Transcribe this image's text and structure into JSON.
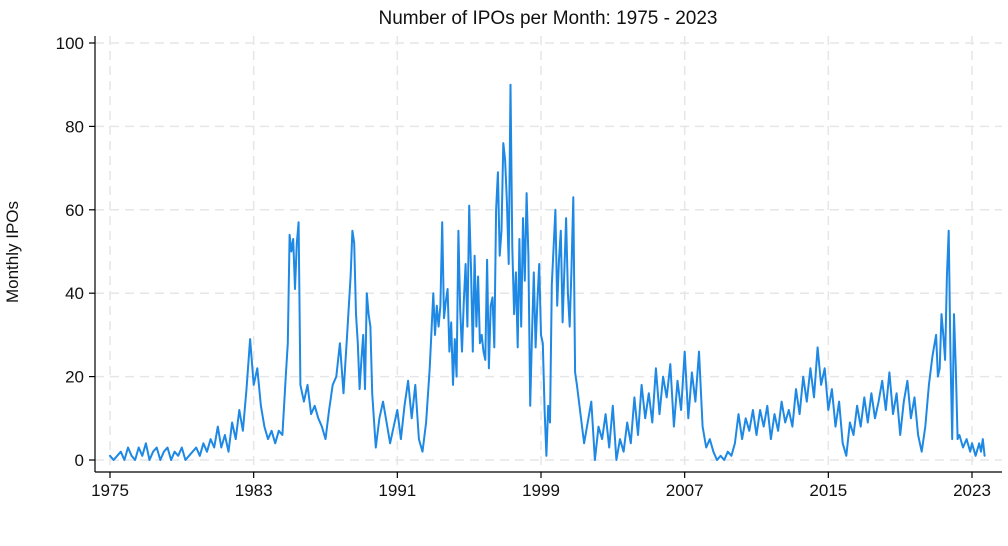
{
  "chart_data": {
    "type": "line",
    "title": "Number of IPOs per Month: 1975 - 2023",
    "xlabel": "",
    "ylabel": "Monthly IPOs",
    "xlim": [
      1975,
      2023.75
    ],
    "ylim": [
      0,
      100
    ],
    "x_ticks": [
      1975,
      1983,
      1991,
      1999,
      2007,
      2015,
      2023
    ],
    "y_ticks": [
      0,
      20,
      40,
      60,
      80,
      100
    ],
    "grid": true,
    "x_unit": "year (monthly observations)",
    "series": [
      {
        "color": "#1e88e5",
        "points": [
          [
            1975.0,
            1
          ],
          [
            1975.2,
            0
          ],
          [
            1975.4,
            1
          ],
          [
            1975.6,
            2
          ],
          [
            1975.8,
            0
          ],
          [
            1976.0,
            3
          ],
          [
            1976.2,
            1
          ],
          [
            1976.4,
            0
          ],
          [
            1976.6,
            3
          ],
          [
            1976.8,
            1
          ],
          [
            1977.0,
            4
          ],
          [
            1977.2,
            0
          ],
          [
            1977.4,
            2
          ],
          [
            1977.6,
            3
          ],
          [
            1977.8,
            0
          ],
          [
            1978.0,
            2
          ],
          [
            1978.2,
            3
          ],
          [
            1978.4,
            0
          ],
          [
            1978.6,
            2
          ],
          [
            1978.8,
            1
          ],
          [
            1979.0,
            3
          ],
          [
            1979.2,
            0
          ],
          [
            1979.4,
            1
          ],
          [
            1979.6,
            2
          ],
          [
            1979.8,
            3
          ],
          [
            1980.0,
            1
          ],
          [
            1980.2,
            4
          ],
          [
            1980.4,
            2
          ],
          [
            1980.6,
            5
          ],
          [
            1980.8,
            3
          ],
          [
            1981.0,
            8
          ],
          [
            1981.2,
            3
          ],
          [
            1981.4,
            6
          ],
          [
            1981.6,
            2
          ],
          [
            1981.8,
            9
          ],
          [
            1982.0,
            5
          ],
          [
            1982.2,
            12
          ],
          [
            1982.4,
            7
          ],
          [
            1982.6,
            17
          ],
          [
            1982.8,
            29
          ],
          [
            1983.0,
            18
          ],
          [
            1983.2,
            22
          ],
          [
            1983.4,
            13
          ],
          [
            1983.6,
            8
          ],
          [
            1983.8,
            5
          ],
          [
            1984.0,
            7
          ],
          [
            1984.2,
            4
          ],
          [
            1984.4,
            7
          ],
          [
            1984.6,
            6
          ],
          [
            1984.8,
            21
          ],
          [
            1984.9,
            28
          ],
          [
            1985.0,
            54
          ],
          [
            1985.1,
            50
          ],
          [
            1985.2,
            53
          ],
          [
            1985.3,
            41
          ],
          [
            1985.4,
            52
          ],
          [
            1985.5,
            57
          ],
          [
            1985.6,
            18
          ],
          [
            1985.8,
            14
          ],
          [
            1986.0,
            18
          ],
          [
            1986.2,
            11
          ],
          [
            1986.4,
            13
          ],
          [
            1986.6,
            10
          ],
          [
            1986.8,
            8
          ],
          [
            1987.0,
            5
          ],
          [
            1987.2,
            12
          ],
          [
            1987.4,
            18
          ],
          [
            1987.6,
            20
          ],
          [
            1987.8,
            28
          ],
          [
            1988.0,
            16
          ],
          [
            1988.2,
            30
          ],
          [
            1988.4,
            44
          ],
          [
            1988.5,
            55
          ],
          [
            1988.6,
            52
          ],
          [
            1988.7,
            35
          ],
          [
            1988.8,
            28
          ],
          [
            1988.9,
            17
          ],
          [
            1989.0,
            24
          ],
          [
            1989.1,
            30
          ],
          [
            1989.2,
            17
          ],
          [
            1989.3,
            40
          ],
          [
            1989.4,
            35
          ],
          [
            1989.5,
            32
          ],
          [
            1989.6,
            16
          ],
          [
            1989.8,
            3
          ],
          [
            1990.0,
            10
          ],
          [
            1990.2,
            14
          ],
          [
            1990.4,
            9
          ],
          [
            1990.6,
            4
          ],
          [
            1990.8,
            8
          ],
          [
            1991.0,
            12
          ],
          [
            1991.2,
            5
          ],
          [
            1991.4,
            13
          ],
          [
            1991.6,
            19
          ],
          [
            1991.8,
            10
          ],
          [
            1992.0,
            18
          ],
          [
            1992.2,
            5
          ],
          [
            1992.4,
            2
          ],
          [
            1992.6,
            9
          ],
          [
            1992.8,
            22
          ],
          [
            1993.0,
            40
          ],
          [
            1993.1,
            30
          ],
          [
            1993.2,
            37
          ],
          [
            1993.3,
            32
          ],
          [
            1993.4,
            37
          ],
          [
            1993.5,
            57
          ],
          [
            1993.6,
            34
          ],
          [
            1993.7,
            38
          ],
          [
            1993.8,
            41
          ],
          [
            1993.9,
            26
          ],
          [
            1994.0,
            33
          ],
          [
            1994.1,
            18
          ],
          [
            1994.2,
            29
          ],
          [
            1994.3,
            20
          ],
          [
            1994.4,
            55
          ],
          [
            1994.5,
            36
          ],
          [
            1994.6,
            26
          ],
          [
            1994.7,
            38
          ],
          [
            1994.8,
            47
          ],
          [
            1994.9,
            32
          ],
          [
            1995.0,
            61
          ],
          [
            1995.1,
            46
          ],
          [
            1995.2,
            26
          ],
          [
            1995.3,
            49
          ],
          [
            1995.4,
            32
          ],
          [
            1995.5,
            44
          ],
          [
            1995.6,
            28
          ],
          [
            1995.7,
            30
          ],
          [
            1995.8,
            26
          ],
          [
            1995.9,
            24
          ],
          [
            1996.0,
            48
          ],
          [
            1996.1,
            22
          ],
          [
            1996.2,
            37
          ],
          [
            1996.3,
            39
          ],
          [
            1996.4,
            27
          ],
          [
            1996.5,
            60
          ],
          [
            1996.6,
            69
          ],
          [
            1996.7,
            49
          ],
          [
            1996.8,
            55
          ],
          [
            1996.9,
            76
          ],
          [
            1997.0,
            72
          ],
          [
            1997.1,
            62
          ],
          [
            1997.2,
            47
          ],
          [
            1997.3,
            90
          ],
          [
            1997.4,
            51
          ],
          [
            1997.5,
            35
          ],
          [
            1997.6,
            45
          ],
          [
            1997.7,
            27
          ],
          [
            1997.8,
            53
          ],
          [
            1997.9,
            32
          ],
          [
            1998.0,
            58
          ],
          [
            1998.1,
            43
          ],
          [
            1998.2,
            64
          ],
          [
            1998.3,
            49
          ],
          [
            1998.4,
            13
          ],
          [
            1998.5,
            30
          ],
          [
            1998.6,
            45
          ],
          [
            1998.7,
            27
          ],
          [
            1998.8,
            38
          ],
          [
            1998.9,
            47
          ],
          [
            1999.0,
            30
          ],
          [
            1999.1,
            28
          ],
          [
            1999.2,
            12
          ],
          [
            1999.3,
            1
          ],
          [
            1999.4,
            13
          ],
          [
            1999.5,
            9
          ],
          [
            1999.6,
            42
          ],
          [
            1999.7,
            51
          ],
          [
            1999.8,
            60
          ],
          [
            1999.9,
            37
          ],
          [
            2000.0,
            48
          ],
          [
            2000.1,
            55
          ],
          [
            2000.2,
            33
          ],
          [
            2000.3,
            45
          ],
          [
            2000.4,
            58
          ],
          [
            2000.5,
            40
          ],
          [
            2000.6,
            32
          ],
          [
            2000.7,
            46
          ],
          [
            2000.8,
            63
          ],
          [
            2000.9,
            21
          ],
          [
            2001.0,
            18
          ],
          [
            2001.2,
            11
          ],
          [
            2001.4,
            4
          ],
          [
            2001.6,
            9
          ],
          [
            2001.8,
            14
          ],
          [
            2002.0,
            0
          ],
          [
            2002.2,
            8
          ],
          [
            2002.4,
            5
          ],
          [
            2002.6,
            11
          ],
          [
            2002.8,
            3
          ],
          [
            2003.0,
            13
          ],
          [
            2003.2,
            0
          ],
          [
            2003.4,
            5
          ],
          [
            2003.6,
            2
          ],
          [
            2003.8,
            9
          ],
          [
            2004.0,
            4
          ],
          [
            2004.2,
            15
          ],
          [
            2004.4,
            6
          ],
          [
            2004.6,
            18
          ],
          [
            2004.8,
            10
          ],
          [
            2005.0,
            16
          ],
          [
            2005.2,
            9
          ],
          [
            2005.4,
            22
          ],
          [
            2005.6,
            11
          ],
          [
            2005.8,
            20
          ],
          [
            2006.0,
            15
          ],
          [
            2006.2,
            23
          ],
          [
            2006.4,
            8
          ],
          [
            2006.6,
            19
          ],
          [
            2006.8,
            12
          ],
          [
            2007.0,
            26
          ],
          [
            2007.2,
            10
          ],
          [
            2007.4,
            21
          ],
          [
            2007.6,
            14
          ],
          [
            2007.8,
            26
          ],
          [
            2008.0,
            8
          ],
          [
            2008.2,
            3
          ],
          [
            2008.4,
            5
          ],
          [
            2008.6,
            2
          ],
          [
            2008.8,
            0
          ],
          [
            2009.0,
            1
          ],
          [
            2009.2,
            0
          ],
          [
            2009.4,
            2
          ],
          [
            2009.6,
            1
          ],
          [
            2009.8,
            4
          ],
          [
            2010.0,
            11
          ],
          [
            2010.2,
            5
          ],
          [
            2010.4,
            10
          ],
          [
            2010.6,
            7
          ],
          [
            2010.8,
            12
          ],
          [
            2011.0,
            6
          ],
          [
            2011.2,
            12
          ],
          [
            2011.4,
            8
          ],
          [
            2011.6,
            13
          ],
          [
            2011.8,
            5
          ],
          [
            2012.0,
            11
          ],
          [
            2012.2,
            7
          ],
          [
            2012.4,
            14
          ],
          [
            2012.6,
            9
          ],
          [
            2012.8,
            12
          ],
          [
            2013.0,
            8
          ],
          [
            2013.2,
            17
          ],
          [
            2013.4,
            11
          ],
          [
            2013.6,
            20
          ],
          [
            2013.8,
            14
          ],
          [
            2014.0,
            22
          ],
          [
            2014.2,
            15
          ],
          [
            2014.4,
            27
          ],
          [
            2014.6,
            18
          ],
          [
            2014.8,
            22
          ],
          [
            2015.0,
            12
          ],
          [
            2015.2,
            17
          ],
          [
            2015.4,
            8
          ],
          [
            2015.6,
            14
          ],
          [
            2015.8,
            4
          ],
          [
            2016.0,
            1
          ],
          [
            2016.2,
            9
          ],
          [
            2016.4,
            6
          ],
          [
            2016.6,
            13
          ],
          [
            2016.8,
            8
          ],
          [
            2017.0,
            15
          ],
          [
            2017.2,
            9
          ],
          [
            2017.4,
            16
          ],
          [
            2017.6,
            10
          ],
          [
            2017.8,
            14
          ],
          [
            2018.0,
            19
          ],
          [
            2018.2,
            12
          ],
          [
            2018.4,
            21
          ],
          [
            2018.6,
            11
          ],
          [
            2018.8,
            16
          ],
          [
            2019.0,
            6
          ],
          [
            2019.2,
            14
          ],
          [
            2019.4,
            19
          ],
          [
            2019.6,
            10
          ],
          [
            2019.8,
            15
          ],
          [
            2020.0,
            6
          ],
          [
            2020.2,
            2
          ],
          [
            2020.4,
            8
          ],
          [
            2020.6,
            18
          ],
          [
            2020.8,
            25
          ],
          [
            2021.0,
            30
          ],
          [
            2021.1,
            20
          ],
          [
            2021.2,
            22
          ],
          [
            2021.3,
            35
          ],
          [
            2021.4,
            30
          ],
          [
            2021.5,
            24
          ],
          [
            2021.6,
            44
          ],
          [
            2021.7,
            55
          ],
          [
            2021.8,
            26
          ],
          [
            2021.9,
            5
          ],
          [
            2022.0,
            35
          ],
          [
            2022.1,
            22
          ],
          [
            2022.2,
            5
          ],
          [
            2022.3,
            6
          ],
          [
            2022.5,
            3
          ],
          [
            2022.7,
            5
          ],
          [
            2022.9,
            2
          ],
          [
            2023.0,
            4
          ],
          [
            2023.2,
            1
          ],
          [
            2023.4,
            4
          ],
          [
            2023.5,
            2
          ],
          [
            2023.6,
            5
          ],
          [
            2023.7,
            1
          ]
        ]
      }
    ]
  }
}
